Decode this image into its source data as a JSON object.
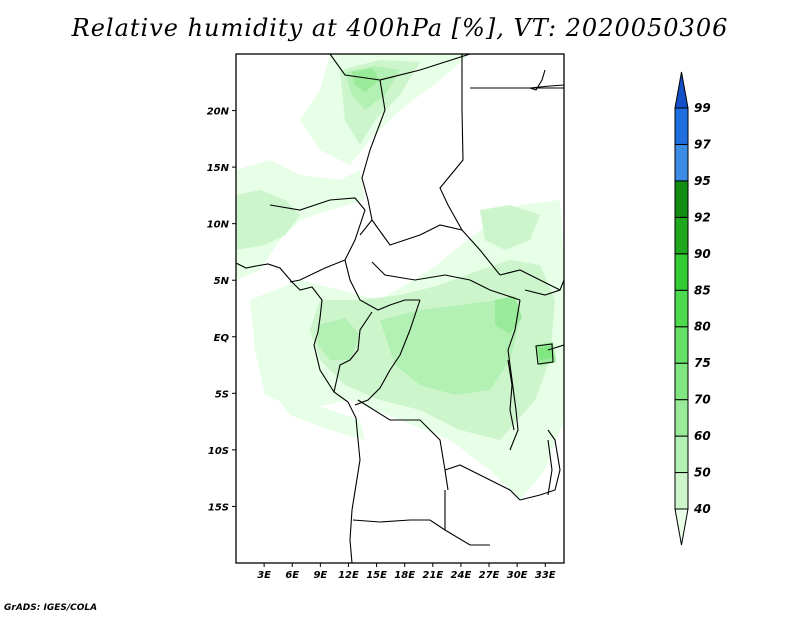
{
  "title": "Relative humidity at 400hPa [%], VT: 2020050306",
  "footer": "GrADS: IGES/COLA",
  "map": {
    "region": "Central Africa",
    "lon_range": [
      0,
      35
    ],
    "lat_range": [
      -20,
      25
    ],
    "lat_ticks": [
      {
        "lat": 20,
        "label": "20N"
      },
      {
        "lat": 15,
        "label": "15N"
      },
      {
        "lat": 10,
        "label": "10N"
      },
      {
        "lat": 5,
        "label": "5N"
      },
      {
        "lat": 0,
        "label": "EQ"
      },
      {
        "lat": -5,
        "label": "5S"
      },
      {
        "lat": -10,
        "label": "10S"
      },
      {
        "lat": -15,
        "label": "15S"
      }
    ],
    "lon_ticks": [
      {
        "lon": 3,
        "label": "3E"
      },
      {
        "lon": 6,
        "label": "6E"
      },
      {
        "lon": 9,
        "label": "9E"
      },
      {
        "lon": 12,
        "label": "12E"
      },
      {
        "lon": 15,
        "label": "15E"
      },
      {
        "lon": 18,
        "label": "18E"
      },
      {
        "lon": 21,
        "label": "21E"
      },
      {
        "lon": 24,
        "label": "24E"
      },
      {
        "lon": 27,
        "label": "27E"
      },
      {
        "lon": 30,
        "label": "30E"
      },
      {
        "lon": 33,
        "label": "33E"
      }
    ]
  },
  "colorbar": {
    "labels": [
      "40",
      "50",
      "60",
      "70",
      "75",
      "80",
      "85",
      "90",
      "92",
      "95",
      "97",
      "99"
    ],
    "colors": [
      "#e6ffe6",
      "#ccf5cc",
      "#b3f0b3",
      "#99eb99",
      "#80e680",
      "#66e066",
      "#4dd94d",
      "#33cc33",
      "#1fa81f",
      "#128c12",
      "#3c8ce6",
      "#1e6ee0",
      "#1450c8"
    ]
  }
}
